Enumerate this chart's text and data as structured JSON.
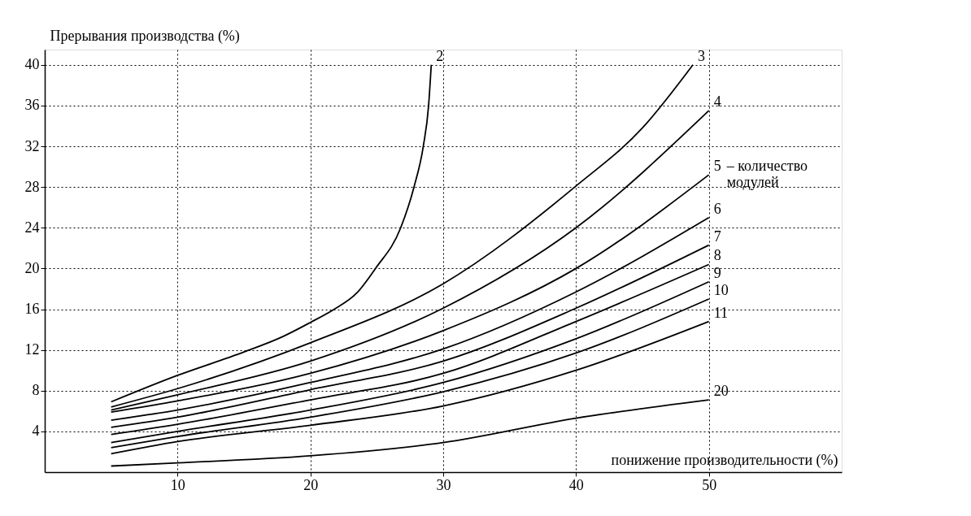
{
  "chart_data": {
    "type": "line",
    "ylabel": "Прерывания производства (%)",
    "xlabel": "понижение производительности (%)",
    "xlim": [
      0,
      60
    ],
    "ylim": [
      0,
      41.5
    ],
    "xticks": [
      10,
      20,
      30,
      40,
      50
    ],
    "yticks": [
      4,
      8,
      12,
      16,
      20,
      24,
      28,
      32,
      36,
      40
    ],
    "grid": true,
    "legend": false,
    "line_style": "solid",
    "series": [
      {
        "name": "2",
        "color": "#000000",
        "x": [
          5,
          10,
          15,
          17.9,
          20,
          21.8,
          23.5,
          24.9,
          26.8,
          27.8,
          28.5,
          28.9,
          29.1
        ],
        "values": [
          6.9,
          9.5,
          11.8,
          13.3,
          14.7,
          16,
          17.6,
          20,
          24,
          28,
          32,
          36,
          40
        ]
      },
      {
        "name": "3",
        "color": "#000000",
        "x": [
          5,
          10,
          20,
          30,
          40,
          45,
          48.8
        ],
        "values": [
          6.4,
          8.2,
          12.7,
          18.5,
          28.1,
          33.8,
          40
        ]
      },
      {
        "name": "4",
        "color": "#000000",
        "x": [
          5,
          10,
          20,
          30,
          40,
          50
        ],
        "values": [
          6.1,
          7.6,
          10.9,
          16.1,
          24,
          35.5
        ]
      },
      {
        "name": "5",
        "color": "#000000",
        "x": [
          5,
          10,
          20,
          30,
          40,
          50
        ],
        "values": [
          5.9,
          7,
          9.7,
          13.9,
          20,
          29.2
        ]
      },
      {
        "name": "6",
        "color": "#000000",
        "x": [
          5,
          10,
          20,
          30,
          40,
          50
        ],
        "values": [
          5.1,
          6.1,
          8.8,
          12.1,
          17.7,
          25
        ]
      },
      {
        "name": "7",
        "color": "#000000",
        "x": [
          5,
          10,
          20,
          30,
          40,
          50
        ],
        "values": [
          4.4,
          5.4,
          8.1,
          10.9,
          16.1,
          22.3
        ]
      },
      {
        "name": "8",
        "color": "#000000",
        "x": [
          5,
          10,
          20,
          30,
          40,
          50
        ],
        "values": [
          3.7,
          4.7,
          7.1,
          9.7,
          14.8,
          20.4
        ]
      },
      {
        "name": "9",
        "color": "#000000",
        "x": [
          5,
          10,
          20,
          30,
          40,
          50
        ],
        "values": [
          2.9,
          4,
          6.1,
          8.8,
          13.1,
          18.7
        ]
      },
      {
        "name": "10",
        "color": "#000000",
        "x": [
          5,
          10,
          20,
          30,
          40,
          50
        ],
        "values": [
          2.4,
          3.5,
          5.4,
          7.9,
          11.7,
          17
        ]
      },
      {
        "name": "11",
        "color": "#000000",
        "x": [
          5,
          10,
          20,
          30,
          40,
          50
        ],
        "values": [
          1.8,
          3,
          4.6,
          6.5,
          10,
          14.8
        ]
      },
      {
        "name": "20",
        "color": "#000000",
        "x": [
          5,
          10,
          20,
          30,
          40,
          50
        ],
        "values": [
          0.6,
          0.9,
          1.6,
          2.9,
          5.3,
          7.1
        ]
      }
    ],
    "annotations": [
      {
        "text": "– количество модулей",
        "x": 50,
        "y": 29.2
      }
    ]
  }
}
